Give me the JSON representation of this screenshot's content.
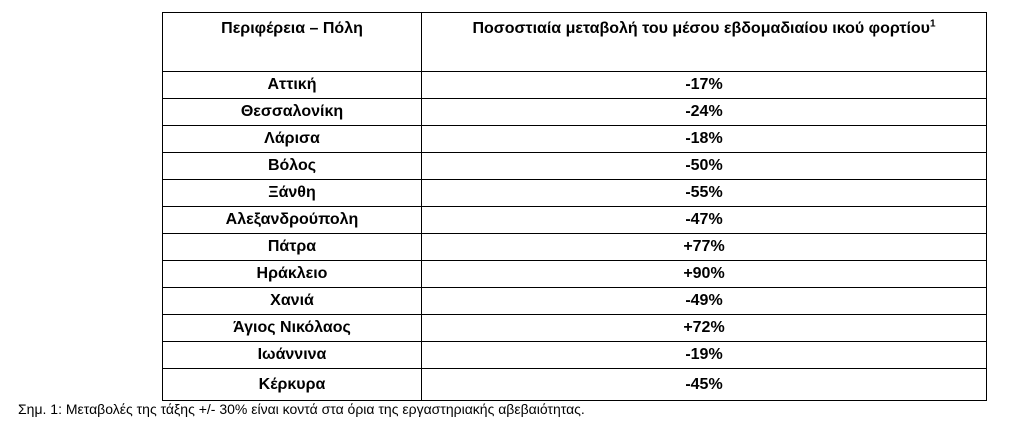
{
  "table": {
    "headers": [
      "Περιφέρεια – Πόλη",
      {
        "text": "Ποσοστιαία μεταβολή του μέσου εβδομαδιαίου ικού φορτίου",
        "sup": "1"
      }
    ],
    "rows": [
      [
        "Αττική",
        "-17%"
      ],
      [
        "Θεσσαλονίκη",
        "-24%"
      ],
      [
        "Λάρισα",
        "-18%"
      ],
      [
        "Βόλος",
        "-50%"
      ],
      [
        "Ξάνθη",
        "-55%"
      ],
      [
        "Αλεξανδρούπολη",
        "-47%"
      ],
      [
        "Πάτρα",
        "+77%"
      ],
      [
        "Ηράκλειο",
        "+90%"
      ],
      [
        "Χανιά",
        "-49%"
      ],
      [
        "Άγιος Νικόλαος",
        "+72%"
      ],
      [
        "Ιωάννινα",
        "-19%"
      ],
      [
        "Κέρκυρα",
        "-45%"
      ]
    ]
  },
  "footnote": "Σημ. 1: Μεταβολές της τάξης +/- 30% είναι κοντά στα όρια της εργαστηριακής αβεβαιότητας."
}
